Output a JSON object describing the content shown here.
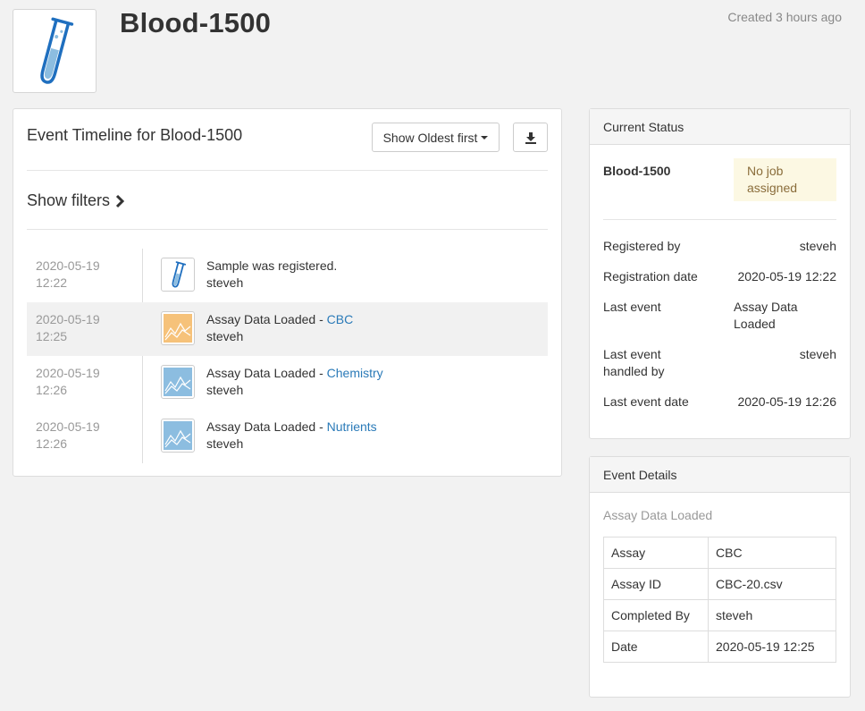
{
  "header": {
    "sample_name": "Blood-1500",
    "created": "Created 3 hours ago"
  },
  "timeline": {
    "heading": "Event Timeline for Blood-1500",
    "sort_label": "Show Oldest first",
    "download_icon": "download-icon",
    "filters_label": "Show filters",
    "events": [
      {
        "date": "2020-05-19",
        "time": "12:22",
        "icon": "test-tube-icon",
        "text": "Sample was registered.",
        "link": "",
        "user": "steveh"
      },
      {
        "date": "2020-05-19",
        "time": "12:25",
        "icon": "chart-orange-icon",
        "text": "Assay Data Loaded - ",
        "link": "CBC",
        "user": "steveh"
      },
      {
        "date": "2020-05-19",
        "time": "12:26",
        "icon": "chart-blue-icon",
        "text": "Assay Data Loaded - ",
        "link": "Chemistry",
        "user": "steveh"
      },
      {
        "date": "2020-05-19",
        "time": "12:26",
        "icon": "chart-blue-icon",
        "text": "Assay Data Loaded - ",
        "link": "Nutrients",
        "user": "steveh"
      }
    ]
  },
  "status": {
    "header": "Current Status",
    "name": "Blood-1500",
    "badge_line1": "No job",
    "badge_line2": "assigned",
    "registered_by_label": "Registered by",
    "registered_by": "steveh",
    "registration_date_label": "Registration date",
    "registration_date": "2020-05-19 12:22",
    "last_event_label": "Last event",
    "last_event_line1": "Assay Data",
    "last_event_line2": "Loaded",
    "last_event_handled_label1": "Last event",
    "last_event_handled_label2": "handled by",
    "last_event_handled_by": "steveh",
    "last_event_date_label": "Last event date",
    "last_event_date": "2020-05-19 12:26"
  },
  "details": {
    "header": "Event Details",
    "title": "Assay Data Loaded",
    "rows": [
      {
        "label": "Assay",
        "value": "CBC"
      },
      {
        "label": "Assay ID",
        "value": "CBC-20.csv"
      },
      {
        "label": "Completed By",
        "value": "steveh"
      },
      {
        "label": "Date",
        "value": "2020-05-19 12:25"
      }
    ]
  },
  "colors": {
    "link": "#2a7ab8",
    "badge_bg": "#fcf8e3",
    "tube_blue": "#1f6fbf",
    "chart_orange": "#f6c27a",
    "chart_blue": "#8cbde0"
  }
}
